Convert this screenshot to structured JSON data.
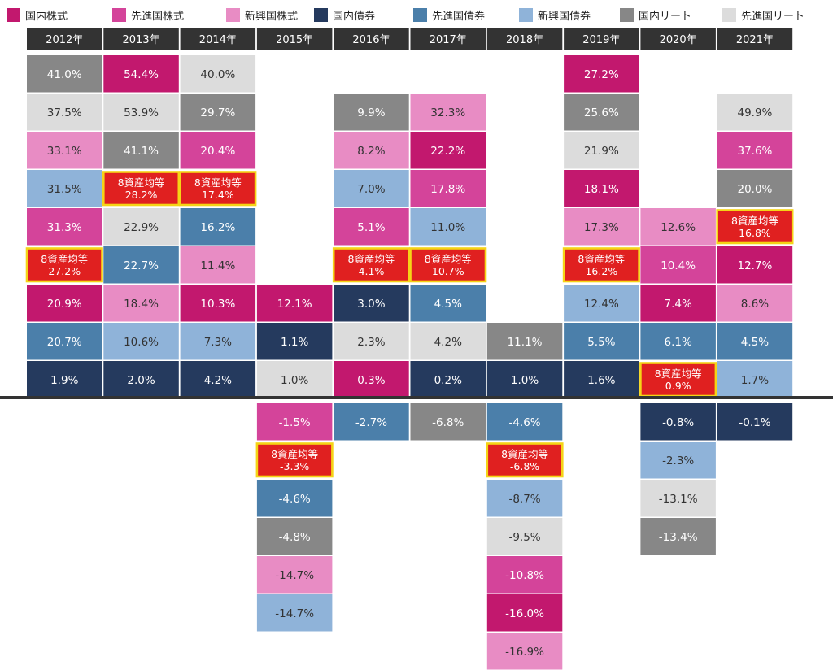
{
  "legend": [
    {
      "label": "国内株式",
      "color": "#c2186e"
    },
    {
      "label": "先進国株式",
      "color": "#d4449a"
    },
    {
      "label": "新興国株式",
      "color": "#e88cc4"
    },
    {
      "label": "国内債券",
      "color": "#253a5e"
    },
    {
      "label": "先進国債券",
      "color": "#4b7faa"
    },
    {
      "label": "新興国債券",
      "color": "#8fb3d9"
    },
    {
      "label": "国内リート",
      "color": "#878787"
    },
    {
      "label": "先進国リート",
      "color": "#dcdcdc"
    }
  ],
  "balanced_label": "8資産均等",
  "balanced_color": "#e02020",
  "balanced_border": "#f5d416",
  "header_color": "#333333",
  "axis_line_color": "#333333",
  "chart_data": {
    "type": "table",
    "description_type": "periodic table of annual returns",
    "years": [
      "2012年",
      "2013年",
      "2014年",
      "2015年",
      "2016年",
      "2017年",
      "2018年",
      "2019年",
      "2020年",
      "2021年"
    ],
    "columns": [
      {
        "positive": [
          {
            "asset": "国内リート",
            "value": "41.0%"
          },
          {
            "asset": "先進国リート",
            "value": "37.5%"
          },
          {
            "asset": "新興国株式",
            "value": "33.1%"
          },
          {
            "asset": "新興国債券",
            "value": "31.5%"
          },
          {
            "asset": "先進国株式",
            "value": "31.3%"
          },
          {
            "asset": "8資産均等",
            "value": "27.2%"
          },
          {
            "asset": "国内株式",
            "value": "20.9%"
          },
          {
            "asset": "先進国債券",
            "value": "20.7%"
          },
          {
            "asset": "国内債券",
            "value": "1.9%"
          }
        ],
        "negative": []
      },
      {
        "positive": [
          {
            "asset": "国内株式",
            "value": "54.4%"
          },
          {
            "asset": "先進国リート",
            "value": "53.9%"
          },
          {
            "asset": "国内リート",
            "value": "41.1%"
          },
          {
            "asset": "8資産均等",
            "value": "28.2%"
          },
          {
            "asset": "先進国リート",
            "value": "22.9%"
          },
          {
            "asset": "先進国債券",
            "value": "22.7%"
          },
          {
            "asset": "新興国株式",
            "value": "18.4%"
          },
          {
            "asset": "新興国債券",
            "value": "10.6%"
          },
          {
            "asset": "国内債券",
            "value": "2.0%"
          }
        ],
        "negative": []
      },
      {
        "positive": [
          {
            "asset": "先進国リート",
            "value": "40.0%"
          },
          {
            "asset": "国内リート",
            "value": "29.7%"
          },
          {
            "asset": "先進国株式",
            "value": "20.4%"
          },
          {
            "asset": "8資産均等",
            "value": "17.4%"
          },
          {
            "asset": "先進国債券",
            "value": "16.2%"
          },
          {
            "asset": "新興国株式",
            "value": "11.4%"
          },
          {
            "asset": "国内株式",
            "value": "10.3%"
          },
          {
            "asset": "新興国債券",
            "value": "7.3%"
          },
          {
            "asset": "国内債券",
            "value": "4.2%"
          }
        ],
        "negative": []
      },
      {
        "positive": [
          {
            "asset": "国内株式",
            "value": "12.1%"
          },
          {
            "asset": "国内債券",
            "value": "1.1%"
          },
          {
            "asset": "先進国リート",
            "value": "1.0%"
          }
        ],
        "negative": [
          {
            "asset": "先進国株式",
            "value": "-1.5%"
          },
          {
            "asset": "8資産均等",
            "value": "-3.3%"
          },
          {
            "asset": "先進国債券",
            "value": "-4.6%"
          },
          {
            "asset": "国内リート",
            "value": "-4.8%"
          },
          {
            "asset": "新興国株式",
            "value": "-14.7%"
          },
          {
            "asset": "新興国債券",
            "value": "-14.7%"
          }
        ]
      },
      {
        "positive": [
          {
            "asset": "国内リート",
            "value": "9.9%"
          },
          {
            "asset": "新興国株式",
            "value": "8.2%"
          },
          {
            "asset": "新興国債券",
            "value": "7.0%"
          },
          {
            "asset": "先進国株式",
            "value": "5.1%"
          },
          {
            "asset": "8資産均等",
            "value": "4.1%"
          },
          {
            "asset": "国内債券",
            "value": "3.0%"
          },
          {
            "asset": "先進国リート",
            "value": "2.3%"
          },
          {
            "asset": "国内株式",
            "value": "0.3%"
          }
        ],
        "negative": [
          {
            "asset": "先進国債券",
            "value": "-2.7%"
          }
        ]
      },
      {
        "positive": [
          {
            "asset": "新興国株式",
            "value": "32.3%"
          },
          {
            "asset": "国内株式",
            "value": "22.2%"
          },
          {
            "asset": "先進国株式",
            "value": "17.8%"
          },
          {
            "asset": "新興国債券",
            "value": "11.0%"
          },
          {
            "asset": "8資産均等",
            "value": "10.7%"
          },
          {
            "asset": "先進国債券",
            "value": "4.5%"
          },
          {
            "asset": "先進国リート",
            "value": "4.2%"
          },
          {
            "asset": "国内債券",
            "value": "0.2%"
          }
        ],
        "negative": [
          {
            "asset": "国内リート",
            "value": "-6.8%"
          }
        ]
      },
      {
        "positive": [
          {
            "asset": "国内リート",
            "value": "11.1%"
          },
          {
            "asset": "国内債券",
            "value": "1.0%"
          }
        ],
        "negative": [
          {
            "asset": "先進国債券",
            "value": "-4.6%"
          },
          {
            "asset": "8資産均等",
            "value": "-6.8%"
          },
          {
            "asset": "新興国債券",
            "value": "-8.7%"
          },
          {
            "asset": "先進国リート",
            "value": "-9.5%"
          },
          {
            "asset": "先進国株式",
            "value": "-10.8%"
          },
          {
            "asset": "国内株式",
            "value": "-16.0%"
          },
          {
            "asset": "新興国株式",
            "value": "-16.9%"
          }
        ]
      },
      {
        "positive": [
          {
            "asset": "国内株式",
            "value": "27.2%"
          },
          {
            "asset": "国内リート",
            "value": "25.6%"
          },
          {
            "asset": "先進国リート",
            "value": "21.9%"
          },
          {
            "asset": "国内株式",
            "value": "18.1%"
          },
          {
            "asset": "新興国株式",
            "value": "17.3%"
          },
          {
            "asset": "8資産均等",
            "value": "16.2%"
          },
          {
            "asset": "新興国債券",
            "value": "12.4%"
          },
          {
            "asset": "先進国債券",
            "value": "5.5%"
          },
          {
            "asset": "国内債券",
            "value": "1.6%"
          }
        ],
        "negative": []
      },
      {
        "positive": [
          {
            "asset": "新興国株式",
            "value": "12.6%"
          },
          {
            "asset": "先進国株式",
            "value": "10.4%"
          },
          {
            "asset": "国内株式",
            "value": "7.4%"
          },
          {
            "asset": "先進国債券",
            "value": "6.1%"
          },
          {
            "asset": "8資産均等",
            "value": "0.9%"
          }
        ],
        "negative": [
          {
            "asset": "国内債券",
            "value": "-0.8%"
          },
          {
            "asset": "新興国債券",
            "value": "-2.3%"
          },
          {
            "asset": "先進国リート",
            "value": "-13.1%"
          },
          {
            "asset": "国内リート",
            "value": "-13.4%"
          }
        ]
      },
      {
        "positive": [
          {
            "asset": "先進国リート",
            "value": "49.9%"
          },
          {
            "asset": "先進国株式",
            "value": "37.6%"
          },
          {
            "asset": "国内リート",
            "value": "20.0%"
          },
          {
            "asset": "8資産均等",
            "value": "16.8%"
          },
          {
            "asset": "国内株式",
            "value": "12.7%"
          },
          {
            "asset": "新興国株式",
            "value": "8.6%"
          },
          {
            "asset": "先進国債券",
            "value": "4.5%"
          },
          {
            "asset": "新興国債券",
            "value": "1.7%"
          }
        ],
        "negative": [
          {
            "asset": "国内債券",
            "value": "-0.1%"
          }
        ]
      }
    ]
  }
}
